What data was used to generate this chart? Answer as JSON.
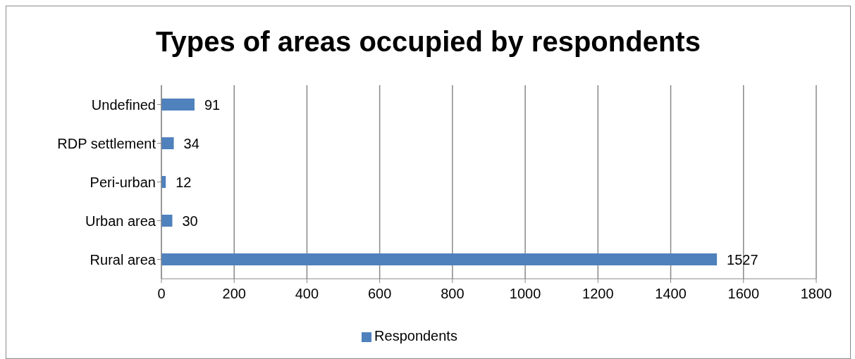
{
  "chart_data": {
    "type": "bar",
    "orientation": "horizontal",
    "title": "Types of areas occupied by respondents",
    "categories": [
      "Undefined",
      "RDP settlement",
      "Peri-urban",
      "Urban area",
      "Rural area"
    ],
    "series": [
      {
        "name": "Respondents",
        "color": "#4f81bd",
        "values": [
          91,
          34,
          12,
          30,
          1527
        ]
      }
    ],
    "xlim": [
      0,
      1800
    ],
    "xticks": [
      0,
      200,
      400,
      600,
      800,
      1000,
      1200,
      1400,
      1600,
      1800
    ],
    "grid": "x",
    "legend": "bottom",
    "data_labels": true
  }
}
